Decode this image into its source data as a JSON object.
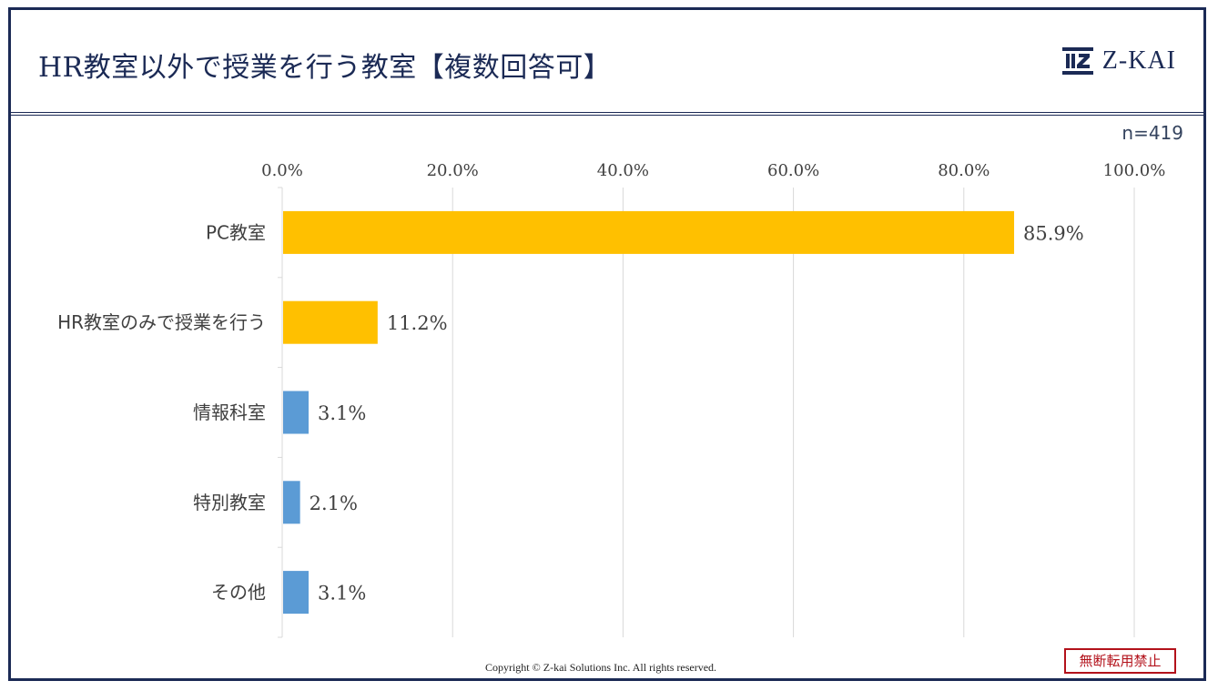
{
  "header": {
    "title": "HR教室以外で授業を行う教室【複数回答可】",
    "logo_text": "Z-KAI"
  },
  "sample_label": "n=419",
  "footer": {
    "copyright": "Copyright © Z-kai Solutions Inc. All rights reserved.",
    "stamp": "無断転用禁止"
  },
  "colors": {
    "highlight_bar": "#ffc000",
    "default_bar": "#5b9bd5",
    "frame": "#1b2a55",
    "grid": "#d9d9d9"
  },
  "chart_data": {
    "type": "bar",
    "orientation": "horizontal",
    "categories": [
      "PC教室",
      "HR教室のみで授業を行う",
      "情報科室",
      "特別教室",
      "その他"
    ],
    "values": [
      85.9,
      11.2,
      3.1,
      2.1,
      3.1
    ],
    "value_labels": [
      "85.9%",
      "11.2%",
      "3.1%",
      "2.1%",
      "3.1%"
    ],
    "highlight": [
      true,
      true,
      false,
      false,
      false
    ],
    "xlim": [
      0,
      100
    ],
    "ticks": [
      0,
      20,
      40,
      60,
      80,
      100
    ],
    "tick_labels": [
      "0.0%",
      "20.0%",
      "40.0%",
      "60.0%",
      "80.0%",
      "100.0%"
    ],
    "axis_position": "top",
    "grid": true
  }
}
